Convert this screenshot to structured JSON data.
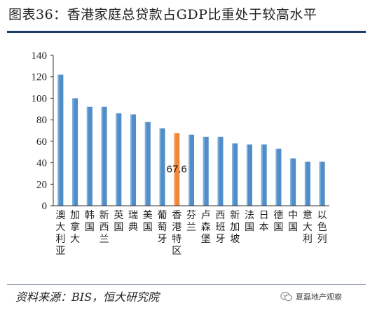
{
  "title": "图表36：香港家庭总贷款占GDP比重处于较高水平",
  "source": "资料来源：BIS，恒大研究院",
  "watermark": {
    "text": "夏磊地产观察",
    "icon": "wechat-icon"
  },
  "colors": {
    "bar": "#4f8ec9",
    "highlight": "#f0883c",
    "title_rule": "#1f3a6b"
  },
  "chart_data": {
    "type": "bar",
    "title": "",
    "xlabel": "",
    "ylabel": "",
    "ylim": [
      0,
      140
    ],
    "yticks": [
      0,
      20,
      40,
      60,
      80,
      100,
      120,
      140
    ],
    "grid": false,
    "legend": "none",
    "categories": [
      "澳大利亚",
      "加拿大",
      "韩国",
      "新西兰",
      "英国",
      "瑞典",
      "美国",
      "葡萄牙",
      "香港特区",
      "芬兰",
      "卢森堡",
      "西班牙",
      "新加坡",
      "法国",
      "日本",
      "德国",
      "中国",
      "意大利",
      "以色列"
    ],
    "values": [
      122,
      100,
      92,
      92,
      86,
      85,
      78,
      72,
      67.6,
      66,
      64,
      64,
      58,
      57,
      57,
      53,
      44,
      41,
      41
    ],
    "highlight_index": 8,
    "annotations": [
      {
        "index": 8,
        "text": "67.6"
      }
    ]
  }
}
